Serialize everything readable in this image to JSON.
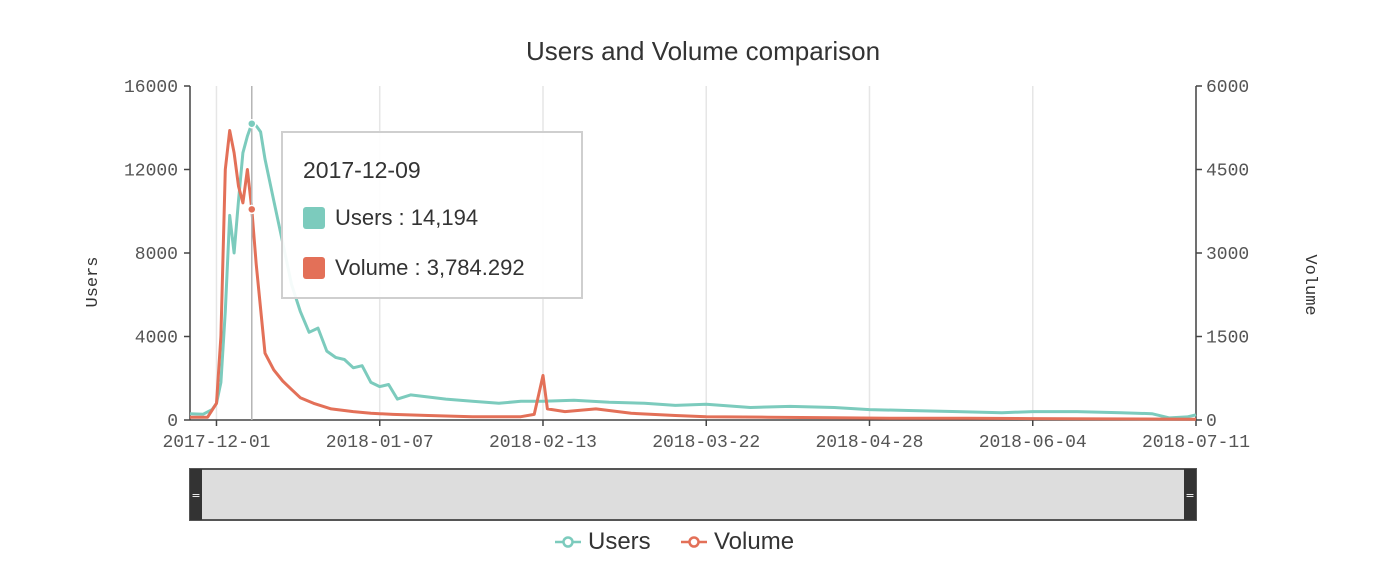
{
  "colors": {
    "users": "#7ccbbd",
    "volume": "#e37058"
  },
  "chart_data": {
    "type": "line",
    "title": "Users and Volume comparison",
    "x_ticks": [
      "2017-12-01",
      "2018-01-07",
      "2018-02-13",
      "2018-03-22",
      "2018-04-28",
      "2018-06-04",
      "2018-07-11"
    ],
    "x_range": [
      "2017-11-25",
      "2018-07-11"
    ],
    "y_left": {
      "label": "Users",
      "range": [
        0,
        16000
      ],
      "ticks": [
        "16000",
        "12000",
        "8000",
        "4000",
        "0"
      ]
    },
    "y_right": {
      "label": "Volume",
      "range": [
        0,
        6000
      ],
      "ticks": [
        "6000",
        "4500",
        "3000",
        "1500",
        "0"
      ]
    },
    "grid": {
      "vertical": true,
      "horizontal": false
    },
    "legend_position": "bottom-center",
    "series": [
      {
        "name": "Users",
        "axis": "left",
        "points": [
          [
            "2017-11-25",
            300
          ],
          [
            "2017-11-28",
            280
          ],
          [
            "2017-11-30",
            500
          ],
          [
            "2017-12-01",
            800
          ],
          [
            "2017-12-02",
            1800
          ],
          [
            "2017-12-03",
            5200
          ],
          [
            "2017-12-04",
            9800
          ],
          [
            "2017-12-05",
            8000
          ],
          [
            "2017-12-06",
            10500
          ],
          [
            "2017-12-07",
            12800
          ],
          [
            "2017-12-08",
            13600
          ],
          [
            "2017-12-09",
            14194
          ],
          [
            "2017-12-10",
            14100
          ],
          [
            "2017-12-11",
            13800
          ],
          [
            "2017-12-12",
            12500
          ],
          [
            "2017-12-14",
            10500
          ],
          [
            "2017-12-16",
            8500
          ],
          [
            "2017-12-18",
            6500
          ],
          [
            "2017-12-20",
            5200
          ],
          [
            "2017-12-22",
            4200
          ],
          [
            "2017-12-24",
            4400
          ],
          [
            "2017-12-26",
            3300
          ],
          [
            "2017-12-28",
            3000
          ],
          [
            "2017-12-30",
            2900
          ],
          [
            "2018-01-01",
            2500
          ],
          [
            "2018-01-03",
            2600
          ],
          [
            "2018-01-05",
            1800
          ],
          [
            "2018-01-07",
            1600
          ],
          [
            "2018-01-09",
            1700
          ],
          [
            "2018-01-11",
            1000
          ],
          [
            "2018-01-14",
            1200
          ],
          [
            "2018-01-18",
            1100
          ],
          [
            "2018-01-22",
            1000
          ],
          [
            "2018-01-28",
            900
          ],
          [
            "2018-02-03",
            800
          ],
          [
            "2018-02-08",
            900
          ],
          [
            "2018-02-13",
            900
          ],
          [
            "2018-02-20",
            950
          ],
          [
            "2018-02-28",
            850
          ],
          [
            "2018-03-08",
            800
          ],
          [
            "2018-03-15",
            700
          ],
          [
            "2018-03-22",
            750
          ],
          [
            "2018-04-01",
            600
          ],
          [
            "2018-04-10",
            650
          ],
          [
            "2018-04-20",
            600
          ],
          [
            "2018-04-28",
            500
          ],
          [
            "2018-05-08",
            450
          ],
          [
            "2018-05-18",
            400
          ],
          [
            "2018-05-28",
            350
          ],
          [
            "2018-06-04",
            400
          ],
          [
            "2018-06-14",
            400
          ],
          [
            "2018-06-24",
            350
          ],
          [
            "2018-07-01",
            300
          ],
          [
            "2018-07-05",
            100
          ],
          [
            "2018-07-09",
            150
          ],
          [
            "2018-07-11",
            250
          ]
        ]
      },
      {
        "name": "Volume",
        "axis": "right",
        "points": [
          [
            "2017-11-25",
            50
          ],
          [
            "2017-11-29",
            50
          ],
          [
            "2017-12-01",
            300
          ],
          [
            "2017-12-02",
            1500
          ],
          [
            "2017-12-03",
            4500
          ],
          [
            "2017-12-04",
            5200
          ],
          [
            "2017-12-05",
            4800
          ],
          [
            "2017-12-06",
            4200
          ],
          [
            "2017-12-07",
            3900
          ],
          [
            "2017-12-08",
            4500
          ],
          [
            "2017-12-09",
            3784.292
          ],
          [
            "2017-12-10",
            2800
          ],
          [
            "2017-12-11",
            2000
          ],
          [
            "2017-12-12",
            1200
          ],
          [
            "2017-12-14",
            900
          ],
          [
            "2017-12-16",
            700
          ],
          [
            "2017-12-18",
            550
          ],
          [
            "2017-12-20",
            400
          ],
          [
            "2017-12-23",
            300
          ],
          [
            "2017-12-27",
            200
          ],
          [
            "2018-01-01",
            150
          ],
          [
            "2018-01-05",
            120
          ],
          [
            "2018-01-10",
            100
          ],
          [
            "2018-01-18",
            80
          ],
          [
            "2018-01-28",
            60
          ],
          [
            "2018-02-08",
            60
          ],
          [
            "2018-02-11",
            100
          ],
          [
            "2018-02-13",
            800
          ],
          [
            "2018-02-14",
            200
          ],
          [
            "2018-02-18",
            150
          ],
          [
            "2018-02-25",
            200
          ],
          [
            "2018-03-05",
            120
          ],
          [
            "2018-03-15",
            80
          ],
          [
            "2018-03-22",
            60
          ],
          [
            "2018-04-05",
            50
          ],
          [
            "2018-04-20",
            40
          ],
          [
            "2018-05-05",
            30
          ],
          [
            "2018-05-20",
            30
          ],
          [
            "2018-06-04",
            25
          ],
          [
            "2018-06-20",
            20
          ],
          [
            "2018-07-11",
            15
          ]
        ]
      }
    ],
    "tooltip": {
      "date": "2017-12-09",
      "rows": [
        {
          "label": "Users : 14,194",
          "series": "Users"
        },
        {
          "label": "Volume : 3,784.292",
          "series": "Volume"
        }
      ]
    },
    "range_slider": {
      "start": 0,
      "end": 1
    }
  }
}
